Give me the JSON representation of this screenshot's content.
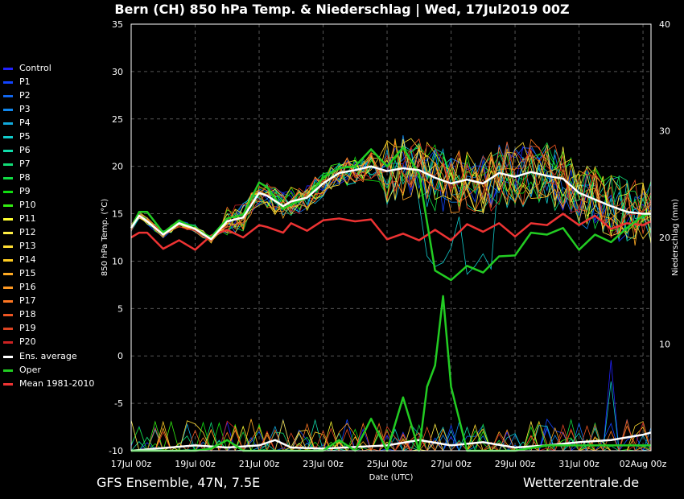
{
  "title": "Bern  (CH)  850 hPa Temp. & Niederschlag | Wed, 17Jul2019 00Z",
  "footer_left": "GFS Ensemble, 47N, 7.5E",
  "footer_right": "Wetterzentrale.de",
  "colors": {
    "ensemble": [
      "#2222ff",
      "#1144ff",
      "#1166ee",
      "#1188ee",
      "#11aadd",
      "#11cccc",
      "#11ddaa",
      "#11dd77",
      "#11dd44",
      "#11dd11",
      "#33ee11",
      "#ffff33",
      "#ffee44",
      "#ffdd33",
      "#ffcc22",
      "#ffaa22",
      "#ff9922",
      "#ff7722",
      "#ee5522",
      "#dd4422",
      "#cc2222"
    ],
    "average": "#ffffff",
    "oper": "#22cc22",
    "mean": "#ee3333"
  },
  "legend": [
    {
      "label": "Control",
      "color": "#2222ff"
    },
    {
      "label": "P1",
      "color": "#1144ff"
    },
    {
      "label": "P2",
      "color": "#1166ee"
    },
    {
      "label": "P3",
      "color": "#1188ee"
    },
    {
      "label": "P4",
      "color": "#11aadd"
    },
    {
      "label": "P5",
      "color": "#11cccc"
    },
    {
      "label": "P6",
      "color": "#11ddaa"
    },
    {
      "label": "P7",
      "color": "#11dd77"
    },
    {
      "label": "P8",
      "color": "#11dd44"
    },
    {
      "label": "P9",
      "color": "#11dd11"
    },
    {
      "label": "P10",
      "color": "#33ee11"
    },
    {
      "label": "P11",
      "color": "#ffff33"
    },
    {
      "label": "P12",
      "color": "#ffee44"
    },
    {
      "label": "P13",
      "color": "#ffdd33"
    },
    {
      "label": "P14",
      "color": "#ffcc22"
    },
    {
      "label": "P15",
      "color": "#ffaa22"
    },
    {
      "label": "P16",
      "color": "#ff9922"
    },
    {
      "label": "P17",
      "color": "#ff7722"
    },
    {
      "label": "P18",
      "color": "#ee5522"
    },
    {
      "label": "P19",
      "color": "#dd4422"
    },
    {
      "label": "P20",
      "color": "#cc2222"
    },
    {
      "label": "Ens. average",
      "color": "#ffffff"
    },
    {
      "label": "Oper",
      "color": "#22cc22"
    },
    {
      "label": "Mean 1981-2010",
      "color": "#ee3333"
    }
  ],
  "chart_data": {
    "type": "line",
    "ylabel": "850 hPa Temp. (°C)",
    "y2label": "Niederschlag (mm)",
    "xlabel": "Date (UTC)",
    "ylim": [
      -10,
      35
    ],
    "y2lim": [
      0,
      40
    ],
    "yticks": [
      -10,
      -5,
      0,
      5,
      10,
      15,
      20,
      25,
      30,
      35
    ],
    "y2ticks": [
      10,
      20,
      30,
      40
    ],
    "xticks": [
      "17Jul 00z",
      "19Jul 00z",
      "21Jul 00z",
      "23Jul 00z",
      "25Jul 00z",
      "27Jul 00z",
      "29Jul 00z",
      "31Jul 00z",
      "02Aug 00z"
    ],
    "x_days": [
      0,
      2,
      4,
      6,
      8,
      10,
      12,
      14,
      16
    ],
    "grid": true,
    "legend_position": "left",
    "series_temp": {
      "ens_average": [
        [
          0,
          13.5
        ],
        [
          0.25,
          14.8
        ],
        [
          0.5,
          14.2
        ],
        [
          1,
          12.8
        ],
        [
          1.5,
          14.0
        ],
        [
          2,
          13.4
        ],
        [
          2.5,
          12.3
        ],
        [
          3,
          14.2
        ],
        [
          3.5,
          14.6
        ],
        [
          4,
          17.2
        ],
        [
          4.25,
          16.9
        ],
        [
          4.75,
          15.8
        ],
        [
          5,
          16.3
        ],
        [
          5.5,
          16.7
        ],
        [
          6,
          18.2
        ],
        [
          6.5,
          19.3
        ],
        [
          7,
          19.6
        ],
        [
          7.5,
          20.0
        ],
        [
          8,
          19.5
        ],
        [
          8.5,
          19.8
        ],
        [
          9,
          19.6
        ],
        [
          9.5,
          18.8
        ],
        [
          10,
          18.2
        ],
        [
          10.5,
          18.6
        ],
        [
          11,
          18.2
        ],
        [
          11.5,
          19.3
        ],
        [
          12,
          18.9
        ],
        [
          12.5,
          19.4
        ],
        [
          13,
          19.0
        ],
        [
          13.5,
          18.7
        ],
        [
          14,
          17.2
        ],
        [
          14.5,
          16.5
        ],
        [
          15,
          15.8
        ],
        [
          15.5,
          15.2
        ],
        [
          16,
          15.0
        ],
        [
          16.25,
          15.0
        ]
      ],
      "oper": [
        [
          0,
          13.5
        ],
        [
          0.25,
          15.2
        ],
        [
          0.5,
          15.2
        ],
        [
          1,
          13.0
        ],
        [
          1.5,
          14.3
        ],
        [
          2,
          13.4
        ],
        [
          2.5,
          12.5
        ],
        [
          3,
          14.5
        ],
        [
          3.5,
          14.9
        ],
        [
          4,
          18.3
        ],
        [
          4.25,
          17.8
        ],
        [
          4.75,
          15.5
        ],
        [
          5,
          16.0
        ],
        [
          5.5,
          16.7
        ],
        [
          6,
          18.8
        ],
        [
          6.5,
          19.8
        ],
        [
          7,
          20.0
        ],
        [
          7.5,
          21.8
        ],
        [
          8,
          20.0
        ],
        [
          8.5,
          22.0
        ],
        [
          9,
          19.2
        ],
        [
          9.5,
          9.0
        ],
        [
          10,
          8.0
        ],
        [
          10.5,
          9.5
        ],
        [
          11,
          8.8
        ],
        [
          11.5,
          10.5
        ],
        [
          12,
          10.6
        ],
        [
          12.5,
          13.0
        ],
        [
          13,
          12.8
        ],
        [
          13.5,
          13.5
        ],
        [
          14,
          11.2
        ],
        [
          14.5,
          12.8
        ],
        [
          15,
          12.0
        ],
        [
          15.5,
          13.5
        ],
        [
          16,
          14.8
        ],
        [
          16.25,
          15.0
        ]
      ],
      "mean_1981_2010": [
        [
          0,
          12.5
        ],
        [
          0.25,
          13.0
        ],
        [
          0.5,
          13.0
        ],
        [
          1,
          11.3
        ],
        [
          1.5,
          12.2
        ],
        [
          2,
          11.2
        ],
        [
          2.5,
          12.7
        ],
        [
          3,
          13.3
        ],
        [
          3.5,
          12.5
        ],
        [
          4,
          13.8
        ],
        [
          4.25,
          13.6
        ],
        [
          4.75,
          13.0
        ],
        [
          5,
          14.0
        ],
        [
          5.5,
          13.2
        ],
        [
          6,
          14.3
        ],
        [
          6.5,
          14.5
        ],
        [
          7,
          14.2
        ],
        [
          7.5,
          14.4
        ],
        [
          8,
          12.3
        ],
        [
          8.5,
          12.9
        ],
        [
          9,
          12.2
        ],
        [
          9.5,
          13.3
        ],
        [
          10,
          12.2
        ],
        [
          10.5,
          13.9
        ],
        [
          11,
          13.1
        ],
        [
          11.5,
          14.0
        ],
        [
          12,
          12.6
        ],
        [
          12.5,
          14.0
        ],
        [
          13,
          13.8
        ],
        [
          13.5,
          15.0
        ],
        [
          14,
          13.8
        ],
        [
          14.5,
          14.8
        ],
        [
          15,
          13.4
        ],
        [
          15.5,
          14.0
        ],
        [
          16,
          13.8
        ],
        [
          16.25,
          14.2
        ]
      ]
    },
    "series_precip_mm": {
      "oper": [
        [
          0,
          0
        ],
        [
          2,
          0
        ],
        [
          2.5,
          0.2
        ],
        [
          3,
          1.0
        ],
        [
          3.5,
          0
        ],
        [
          6,
          0
        ],
        [
          6.5,
          1.0
        ],
        [
          7,
          0
        ],
        [
          7.5,
          3.0
        ],
        [
          8,
          0
        ],
        [
          8.5,
          5.0
        ],
        [
          9,
          0
        ],
        [
          9.25,
          6.0
        ],
        [
          9.5,
          8.0
        ],
        [
          9.75,
          14.5
        ],
        [
          10,
          6.0
        ],
        [
          10.25,
          3.0
        ],
        [
          10.5,
          0
        ],
        [
          12,
          0
        ],
        [
          13,
          0.5
        ],
        [
          16.25,
          0.5
        ]
      ],
      "ens_average": [
        [
          0,
          0
        ],
        [
          2,
          0.5
        ],
        [
          3,
          0.3
        ],
        [
          4,
          0.5
        ],
        [
          4.5,
          1.0
        ],
        [
          5,
          0.3
        ],
        [
          6,
          0.2
        ],
        [
          8,
          0.5
        ],
        [
          9,
          1.0
        ],
        [
          10,
          0.5
        ],
        [
          11,
          0.8
        ],
        [
          12,
          0.3
        ],
        [
          13,
          0.5
        ],
        [
          14,
          0.8
        ],
        [
          15,
          1.0
        ],
        [
          16,
          1.5
        ],
        [
          16.25,
          1.7
        ]
      ]
    }
  }
}
